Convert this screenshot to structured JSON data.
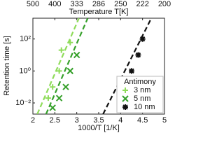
{
  "chart_data": {
    "type": "scatter",
    "xlabel": "1000/T [1/K]",
    "ylabel": "Retention time [s]",
    "x2label": "Temperature T[K]",
    "xlim": [
      2,
      5
    ],
    "xticks": [
      2,
      2.5,
      3,
      3.5,
      4,
      4.5,
      5
    ],
    "x2ticks": [
      {
        "value": 2,
        "label": "500"
      },
      {
        "value": 2.5,
        "label": "400"
      },
      {
        "value": 3,
        "label": "333"
      },
      {
        "value": 3.5,
        "label": "286"
      },
      {
        "value": 4,
        "label": "250"
      },
      {
        "value": 4.5,
        "label": "222"
      },
      {
        "value": 5,
        "label": "200"
      }
    ],
    "ylim": [
      0.002,
      2000
    ],
    "ylog": true,
    "yticks": [
      {
        "value": 0.01,
        "label": "10⁻²"
      },
      {
        "value": 1,
        "label": "10⁰"
      },
      {
        "value": 100,
        "label": "10²"
      }
    ],
    "legend_title": "Antimony",
    "legend_loc": "lower right",
    "series": [
      {
        "name": "3 nm",
        "color": "#8fdc5a",
        "marker": "plus",
        "x": [
          2.35,
          2.45,
          2.6,
          2.65,
          2.85
        ],
        "values": [
          0.02,
          0.1,
          1,
          20,
          60
        ]
      },
      {
        "name": "5 nm",
        "color": "#35a02a",
        "marker": "cross",
        "x": [
          2.45,
          2.6,
          2.75,
          2.85,
          3.0
        ],
        "values": [
          0.005,
          0.02,
          0.1,
          1,
          10
        ]
      },
      {
        "name": "10 nm",
        "color": "#111111",
        "marker": "star",
        "x": [
          4.0,
          4.1,
          4.25,
          4.4,
          4.5
        ],
        "values": [
          0.01,
          0.1,
          1,
          10,
          100
        ]
      }
    ],
    "fits": [
      {
        "color": "#8fdc5a",
        "x": [
          2.1,
          3.05
        ],
        "values": [
          0.002,
          2000
        ]
      },
      {
        "color": "#35a02a",
        "x": [
          2.3,
          3.25
        ],
        "values": [
          0.002,
          2000
        ]
      },
      {
        "color": "#111111",
        "x": [
          3.6,
          4.7
        ],
        "values": [
          0.002,
          2000
        ]
      }
    ]
  }
}
